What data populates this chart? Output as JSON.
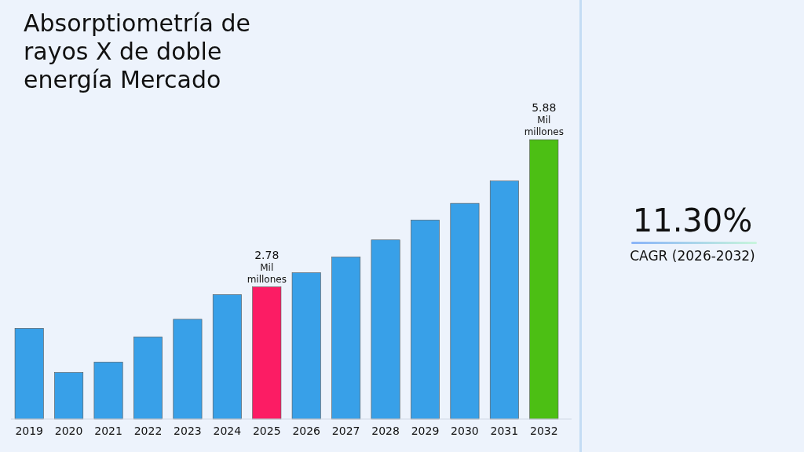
{
  "chart_data": {
    "type": "bar",
    "title": "Absorptiometría de rayos X de doble energía Mercado",
    "categories": [
      "2019",
      "2020",
      "2021",
      "2022",
      "2023",
      "2024",
      "2025",
      "2026",
      "2027",
      "2028",
      "2029",
      "2030",
      "2031",
      "2032"
    ],
    "values": [
      1.91,
      0.98,
      1.2,
      1.73,
      2.1,
      2.62,
      2.78,
      3.08,
      3.41,
      3.77,
      4.19,
      4.54,
      5.01,
      5.88
    ],
    "colors": [
      "#38a0e8",
      "#38a0e8",
      "#38a0e8",
      "#38a0e8",
      "#38a0e8",
      "#38a0e8",
      "#fc1c64",
      "#38a0e8",
      "#38a0e8",
      "#38a0e8",
      "#38a0e8",
      "#38a0e8",
      "#38a0e8",
      "#4cbf14"
    ],
    "value_labels": [
      null,
      null,
      null,
      null,
      null,
      null,
      "2.78 Mil millones",
      null,
      null,
      null,
      null,
      null,
      null,
      "5.88 Mil millones"
    ],
    "annotations": [
      "11.30%",
      "CAGR (2026-2032)"
    ]
  }
}
